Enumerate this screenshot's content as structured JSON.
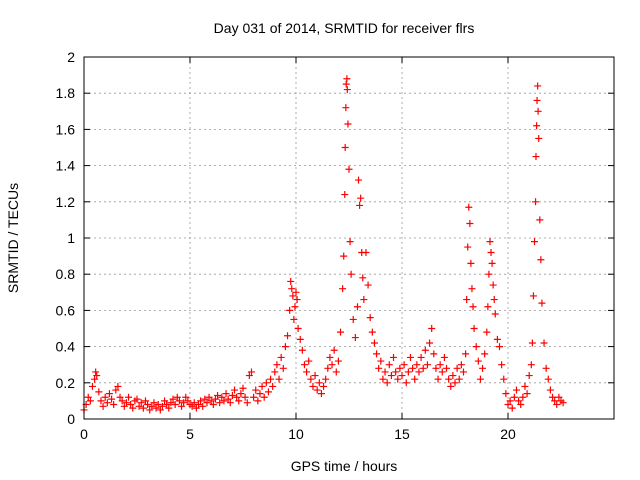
{
  "chart_data": {
    "type": "scatter",
    "title": "Day 031 of 2014, SRMTID for receiver flrs",
    "xlabel": "GPS time / hours",
    "ylabel": "SRMTID / TECUs",
    "xlim": [
      0,
      25
    ],
    "ylim": [
      0,
      2
    ],
    "xticks": [
      0,
      5,
      10,
      15,
      20
    ],
    "yticks": [
      0,
      0.2,
      0.4,
      0.6,
      0.8,
      1,
      1.2,
      1.4,
      1.6,
      1.8,
      2
    ],
    "xtick_labels": [
      "0",
      "5",
      "10",
      "15",
      "20"
    ],
    "ytick_labels": [
      "0",
      "0.2",
      "0.4",
      "0.6",
      "0.8",
      "1",
      "1.2",
      "1.4",
      "1.6",
      "1.8",
      "2"
    ],
    "grid": true,
    "marker": "+",
    "color": "#ff0000",
    "series": [
      {
        "name": "SRMTID",
        "points": [
          [
            0.0,
            0.05
          ],
          [
            0.1,
            0.08
          ],
          [
            0.2,
            0.12
          ],
          [
            0.3,
            0.1
          ],
          [
            0.4,
            0.18
          ],
          [
            0.5,
            0.22
          ],
          [
            0.55,
            0.26
          ],
          [
            0.6,
            0.24
          ],
          [
            0.7,
            0.15
          ],
          [
            0.8,
            0.1
          ],
          [
            0.9,
            0.07
          ],
          [
            1.0,
            0.12
          ],
          [
            1.1,
            0.09
          ],
          [
            1.2,
            0.14
          ],
          [
            1.3,
            0.11
          ],
          [
            1.4,
            0.08
          ],
          [
            1.5,
            0.16
          ],
          [
            1.6,
            0.18
          ],
          [
            1.7,
            0.12
          ],
          [
            1.8,
            0.1
          ],
          [
            1.9,
            0.07
          ],
          [
            2.0,
            0.09
          ],
          [
            2.1,
            0.12
          ],
          [
            2.2,
            0.08
          ],
          [
            2.3,
            0.06
          ],
          [
            2.4,
            0.1
          ],
          [
            2.5,
            0.11
          ],
          [
            2.6,
            0.07
          ],
          [
            2.7,
            0.09
          ],
          [
            2.8,
            0.06
          ],
          [
            2.9,
            0.1
          ],
          [
            3.0,
            0.08
          ],
          [
            3.1,
            0.05
          ],
          [
            3.2,
            0.07
          ],
          [
            3.3,
            0.09
          ],
          [
            3.4,
            0.06
          ],
          [
            3.5,
            0.08
          ],
          [
            3.6,
            0.05
          ],
          [
            3.7,
            0.07
          ],
          [
            3.8,
            0.1
          ],
          [
            3.9,
            0.08
          ],
          [
            4.0,
            0.06
          ],
          [
            4.1,
            0.09
          ],
          [
            4.2,
            0.11
          ],
          [
            4.3,
            0.08
          ],
          [
            4.4,
            0.12
          ],
          [
            4.5,
            0.1
          ],
          [
            4.6,
            0.07
          ],
          [
            4.7,
            0.09
          ],
          [
            4.8,
            0.12
          ],
          [
            4.9,
            0.1
          ],
          [
            5.0,
            0.08
          ],
          [
            5.1,
            0.07
          ],
          [
            5.2,
            0.09
          ],
          [
            5.3,
            0.06
          ],
          [
            5.4,
            0.08
          ],
          [
            5.5,
            0.1
          ],
          [
            5.6,
            0.07
          ],
          [
            5.7,
            0.11
          ],
          [
            5.8,
            0.09
          ],
          [
            5.9,
            0.12
          ],
          [
            6.0,
            0.1
          ],
          [
            6.1,
            0.08
          ],
          [
            6.2,
            0.11
          ],
          [
            6.3,
            0.13
          ],
          [
            6.4,
            0.09
          ],
          [
            6.5,
            0.12
          ],
          [
            6.6,
            0.1
          ],
          [
            6.7,
            0.14
          ],
          [
            6.8,
            0.11
          ],
          [
            6.9,
            0.09
          ],
          [
            7.0,
            0.13
          ],
          [
            7.1,
            0.16
          ],
          [
            7.2,
            0.12
          ],
          [
            7.3,
            0.1
          ],
          [
            7.4,
            0.14
          ],
          [
            7.5,
            0.17
          ],
          [
            7.6,
            0.12
          ],
          [
            7.7,
            0.09
          ],
          [
            7.8,
            0.24
          ],
          [
            7.9,
            0.26
          ],
          [
            8.0,
            0.12
          ],
          [
            8.1,
            0.16
          ],
          [
            8.2,
            0.1
          ],
          [
            8.3,
            0.14
          ],
          [
            8.4,
            0.18
          ],
          [
            8.5,
            0.12
          ],
          [
            8.6,
            0.2
          ],
          [
            8.7,
            0.15
          ],
          [
            8.8,
            0.22
          ],
          [
            8.9,
            0.18
          ],
          [
            9.0,
            0.26
          ],
          [
            9.1,
            0.3
          ],
          [
            9.2,
            0.22
          ],
          [
            9.3,
            0.34
          ],
          [
            9.4,
            0.28
          ],
          [
            9.5,
            0.4
          ],
          [
            9.6,
            0.46
          ],
          [
            9.7,
            0.6
          ],
          [
            9.75,
            0.76
          ],
          [
            9.8,
            0.72
          ],
          [
            9.85,
            0.68
          ],
          [
            9.9,
            0.55
          ],
          [
            9.95,
            0.62
          ],
          [
            10.0,
            0.7
          ],
          [
            10.05,
            0.66
          ],
          [
            10.1,
            0.5
          ],
          [
            10.2,
            0.44
          ],
          [
            10.3,
            0.38
          ],
          [
            10.4,
            0.3
          ],
          [
            10.5,
            0.26
          ],
          [
            10.6,
            0.32
          ],
          [
            10.7,
            0.22
          ],
          [
            10.8,
            0.18
          ],
          [
            10.9,
            0.24
          ],
          [
            11.0,
            0.16
          ],
          [
            11.1,
            0.2
          ],
          [
            11.2,
            0.14
          ],
          [
            11.3,
            0.18
          ],
          [
            11.4,
            0.22
          ],
          [
            11.5,
            0.28
          ],
          [
            11.6,
            0.34
          ],
          [
            11.7,
            0.3
          ],
          [
            11.8,
            0.38
          ],
          [
            11.9,
            0.26
          ],
          [
            12.0,
            0.32
          ],
          [
            12.1,
            0.48
          ],
          [
            12.2,
            0.72
          ],
          [
            12.25,
            0.9
          ],
          [
            12.3,
            1.24
          ],
          [
            12.32,
            1.5
          ],
          [
            12.35,
            1.72
          ],
          [
            12.37,
            1.85
          ],
          [
            12.4,
            1.88
          ],
          [
            12.42,
            1.82
          ],
          [
            12.45,
            1.63
          ],
          [
            12.5,
            1.38
          ],
          [
            12.55,
            0.98
          ],
          [
            12.6,
            0.8
          ],
          [
            12.7,
            0.55
          ],
          [
            12.8,
            0.45
          ],
          [
            12.9,
            0.62
          ],
          [
            12.95,
            1.32
          ],
          [
            13.0,
            1.18
          ],
          [
            13.05,
            1.22
          ],
          [
            13.1,
            0.92
          ],
          [
            13.15,
            0.78
          ],
          [
            13.2,
            0.66
          ],
          [
            13.3,
            0.92
          ],
          [
            13.4,
            0.74
          ],
          [
            13.5,
            0.56
          ],
          [
            13.6,
            0.48
          ],
          [
            13.7,
            0.42
          ],
          [
            13.8,
            0.36
          ],
          [
            13.9,
            0.28
          ],
          [
            14.0,
            0.32
          ],
          [
            14.1,
            0.22
          ],
          [
            14.2,
            0.26
          ],
          [
            14.3,
            0.2
          ],
          [
            14.4,
            0.3
          ],
          [
            14.5,
            0.24
          ],
          [
            14.6,
            0.34
          ],
          [
            14.7,
            0.26
          ],
          [
            14.8,
            0.22
          ],
          [
            14.9,
            0.28
          ],
          [
            15.0,
            0.24
          ],
          [
            15.1,
            0.3
          ],
          [
            15.2,
            0.2
          ],
          [
            15.3,
            0.26
          ],
          [
            15.4,
            0.34
          ],
          [
            15.5,
            0.28
          ],
          [
            15.6,
            0.22
          ],
          [
            15.7,
            0.3
          ],
          [
            15.8,
            0.26
          ],
          [
            15.9,
            0.34
          ],
          [
            16.0,
            0.28
          ],
          [
            16.1,
            0.38
          ],
          [
            16.2,
            0.3
          ],
          [
            16.3,
            0.42
          ],
          [
            16.4,
            0.5
          ],
          [
            16.5,
            0.36
          ],
          [
            16.6,
            0.28
          ],
          [
            16.7,
            0.22
          ],
          [
            16.8,
            0.3
          ],
          [
            16.9,
            0.26
          ],
          [
            17.0,
            0.34
          ],
          [
            17.1,
            0.28
          ],
          [
            17.2,
            0.22
          ],
          [
            17.3,
            0.18
          ],
          [
            17.4,
            0.24
          ],
          [
            17.5,
            0.2
          ],
          [
            17.6,
            0.28
          ],
          [
            17.7,
            0.22
          ],
          [
            17.8,
            0.3
          ],
          [
            17.9,
            0.26
          ],
          [
            18.0,
            0.36
          ],
          [
            18.05,
            0.66
          ],
          [
            18.1,
            0.95
          ],
          [
            18.15,
            1.17
          ],
          [
            18.2,
            1.08
          ],
          [
            18.25,
            0.86
          ],
          [
            18.3,
            0.72
          ],
          [
            18.35,
            0.62
          ],
          [
            18.4,
            0.5
          ],
          [
            18.5,
            0.4
          ],
          [
            18.6,
            0.32
          ],
          [
            18.7,
            0.22
          ],
          [
            18.8,
            0.28
          ],
          [
            18.9,
            0.36
          ],
          [
            19.0,
            0.48
          ],
          [
            19.05,
            0.62
          ],
          [
            19.1,
            0.8
          ],
          [
            19.15,
            0.98
          ],
          [
            19.2,
            0.92
          ],
          [
            19.25,
            0.86
          ],
          [
            19.3,
            0.74
          ],
          [
            19.35,
            0.66
          ],
          [
            19.4,
            0.58
          ],
          [
            19.5,
            0.44
          ],
          [
            19.6,
            0.4
          ],
          [
            19.7,
            0.3
          ],
          [
            19.8,
            0.22
          ],
          [
            19.9,
            0.14
          ],
          [
            20.0,
            0.08
          ],
          [
            20.1,
            0.1
          ],
          [
            20.2,
            0.06
          ],
          [
            20.3,
            0.12
          ],
          [
            20.4,
            0.16
          ],
          [
            20.5,
            0.1
          ],
          [
            20.6,
            0.08
          ],
          [
            20.7,
            0.12
          ],
          [
            20.8,
            0.18
          ],
          [
            20.9,
            0.14
          ],
          [
            21.0,
            0.24
          ],
          [
            21.1,
            0.3
          ],
          [
            21.15,
            0.42
          ],
          [
            21.2,
            0.68
          ],
          [
            21.25,
            0.98
          ],
          [
            21.3,
            1.2
          ],
          [
            21.32,
            1.45
          ],
          [
            21.35,
            1.62
          ],
          [
            21.37,
            1.76
          ],
          [
            21.4,
            1.84
          ],
          [
            21.42,
            1.7
          ],
          [
            21.45,
            1.55
          ],
          [
            21.5,
            1.1
          ],
          [
            21.55,
            0.88
          ],
          [
            21.6,
            0.64
          ],
          [
            21.7,
            0.42
          ],
          [
            21.8,
            0.28
          ],
          [
            21.9,
            0.22
          ],
          [
            22.0,
            0.16
          ],
          [
            22.1,
            0.12
          ],
          [
            22.2,
            0.1
          ],
          [
            22.3,
            0.08
          ],
          [
            22.4,
            0.12
          ],
          [
            22.5,
            0.1
          ],
          [
            22.6,
            0.09
          ]
        ]
      }
    ]
  }
}
